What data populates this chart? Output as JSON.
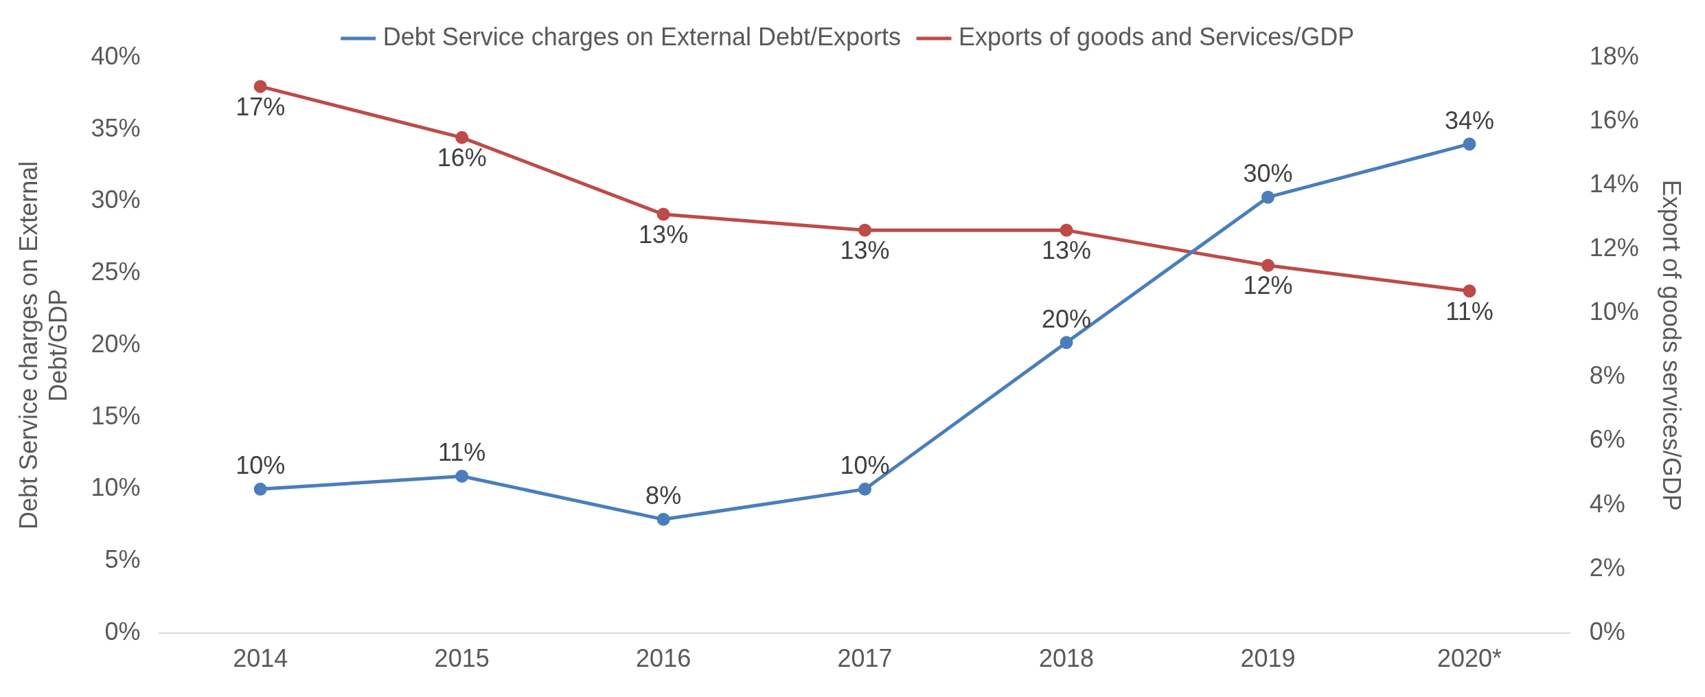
{
  "chart_data": {
    "type": "line",
    "categories": [
      "2014",
      "2015",
      "2016",
      "2017",
      "2018",
      "2019",
      "2020*"
    ],
    "ylabel": "Debt Service charges on External Debt/GDP",
    "y2label": "Export of goods services/GDP",
    "series": [
      {
        "name": "Debt Service charges on External Debt/Exports",
        "color": "#4a7ebb",
        "values": [
          10.0,
          10.9,
          7.9,
          10.0,
          20.2,
          30.3,
          34.0
        ],
        "value_labels": [
          "10%",
          "11%",
          "8%",
          "10%",
          "20%",
          "30%",
          "34%"
        ]
      },
      {
        "name": "Exports of goods and Services/GDP",
        "color": "#be4b48",
        "axis": "y2",
        "values": [
          17.1,
          15.5,
          13.1,
          12.6,
          12.6,
          11.5,
          10.7
        ],
        "value_labels": [
          "17%",
          "16%",
          "13%",
          "13%",
          "13%",
          "12%",
          "11%"
        ]
      }
    ],
    "ylim": [
      0,
      40
    ],
    "yticks": [
      {
        "value": 0,
        "label": "0%"
      },
      {
        "value": 5,
        "label": "5%"
      },
      {
        "value": 10,
        "label": "10%"
      },
      {
        "value": 15,
        "label": "15%"
      },
      {
        "value": 20,
        "label": "20%"
      },
      {
        "value": 25,
        "label": "25%"
      },
      {
        "value": 30,
        "label": "30%"
      },
      {
        "value": 35,
        "label": "35%"
      },
      {
        "value": 40,
        "label": "40%"
      }
    ],
    "y2lim": [
      0,
      18
    ],
    "y2ticks": [
      {
        "value": 0,
        "label": "0%"
      },
      {
        "value": 2,
        "label": "2%"
      },
      {
        "value": 4,
        "label": "4%"
      },
      {
        "value": 6,
        "label": "6%"
      },
      {
        "value": 8,
        "label": "8%"
      },
      {
        "value": 10,
        "label": "10%"
      },
      {
        "value": 12,
        "label": "12%"
      },
      {
        "value": 14,
        "label": "14%"
      },
      {
        "value": 16,
        "label": "16%"
      },
      {
        "value": 18,
        "label": "18%"
      }
    ],
    "grid": false,
    "legend": "top",
    "marker": "circle",
    "line_style": "solid"
  }
}
